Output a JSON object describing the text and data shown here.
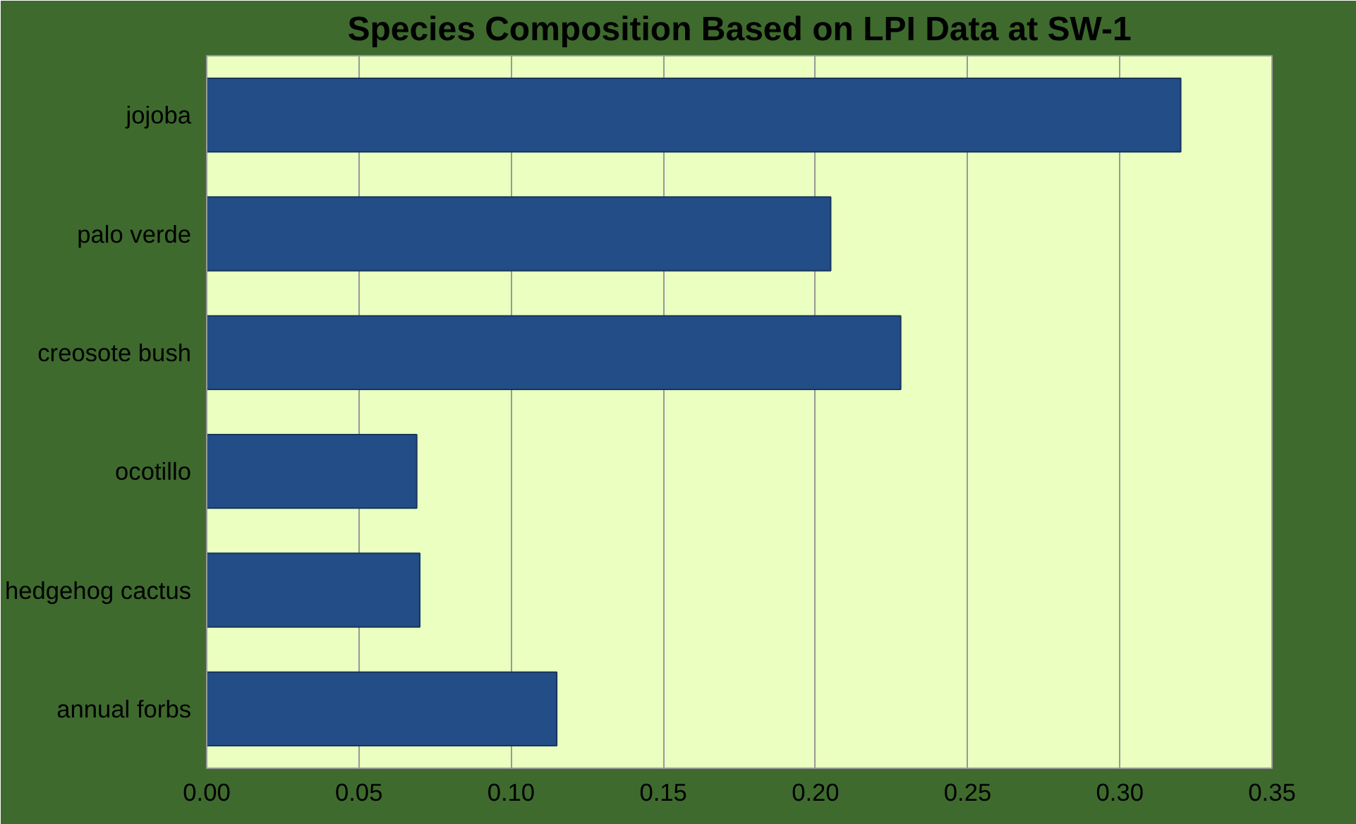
{
  "chart_data": {
    "type": "bar",
    "orientation": "horizontal",
    "title": "Species Composition Based on LPI Data at SW-1",
    "categories": [
      "jojoba",
      "palo verde",
      "creosote bush",
      "ocotillo",
      "hedgehog cactus",
      "annual forbs"
    ],
    "values": [
      0.32,
      0.205,
      0.228,
      0.069,
      0.07,
      0.115
    ],
    "color": "#234d86",
    "xlim": [
      0,
      0.35
    ],
    "xticks": [
      {
        "value": 0,
        "label": "0.00"
      },
      {
        "value": 0.05,
        "label": "0.05"
      },
      {
        "value": 0.1,
        "label": "0.10"
      },
      {
        "value": 0.15,
        "label": "0.15"
      },
      {
        "value": 0.2,
        "label": "0.20"
      },
      {
        "value": 0.25,
        "label": "0.25"
      },
      {
        "value": 0.3,
        "label": "0.30"
      },
      {
        "value": 0.35,
        "label": "0.35"
      }
    ],
    "grid": "x"
  }
}
